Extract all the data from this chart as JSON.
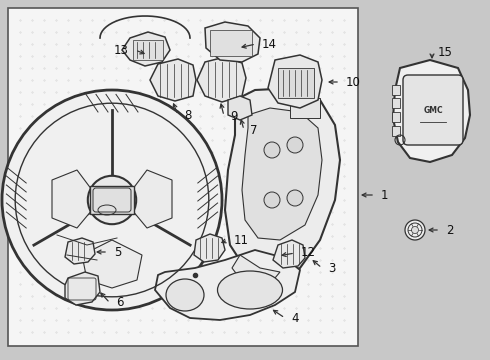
{
  "fig_width": 4.9,
  "fig_height": 3.6,
  "dpi": 100,
  "bg_outer": "#c8c8c8",
  "bg_inner": "#f0f0f0",
  "bg_right": "#e8e8e8",
  "lc": "#333333",
  "tc": "#111111",
  "label_fontsize": 8.5
}
